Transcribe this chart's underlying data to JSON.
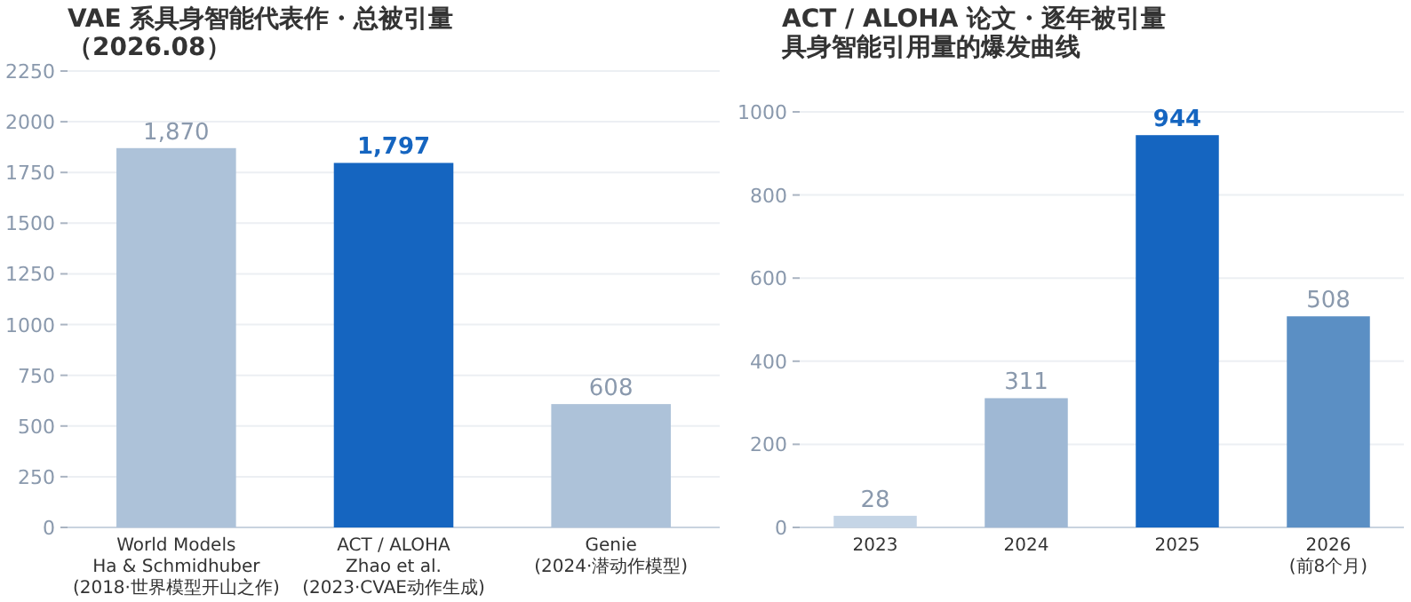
{
  "chart_data": [
    {
      "type": "bar",
      "title": "VAE 系具身智能代表作・总被引量",
      "subtitle": "（2026.08）",
      "categories": [
        "World Models\nHa & Schmidhuber\n(2018·世界模型开山之作)",
        "ACT / ALOHA\nZhao et al.\n(2023·CVAE动作生成)",
        "Genie\n(2024·潜动作模型)"
      ],
      "values": [
        1870,
        1797,
        608
      ],
      "colors": [
        "#adc2d9",
        "#1565c0",
        "#adc2d9"
      ],
      "value_labels": [
        "1,870",
        "1,797",
        "608"
      ],
      "ylim": [
        0,
        2250
      ],
      "yticks": [
        0,
        250,
        500,
        750,
        1000,
        1250,
        1500,
        1750,
        2000,
        2250
      ],
      "grid": "y"
    },
    {
      "type": "bar",
      "title": "ACT / ALOHA 论文・逐年被引量",
      "subtitle": "具身智能引用量的爆发曲线",
      "categories": [
        "2023",
        "2024",
        "2025",
        "2026\n(前8个月)"
      ],
      "values": [
        28,
        311,
        944,
        508
      ],
      "colors": [
        "#c5d5e6",
        "#9fb8d4",
        "#1565c0",
        "#5b8fc4"
      ],
      "value_labels": [
        "28",
        "311",
        "944",
        "508"
      ],
      "ylim": [
        0,
        1000
      ],
      "yticks": [
        0,
        200,
        400,
        600,
        800,
        1000
      ],
      "grid": "y"
    }
  ]
}
